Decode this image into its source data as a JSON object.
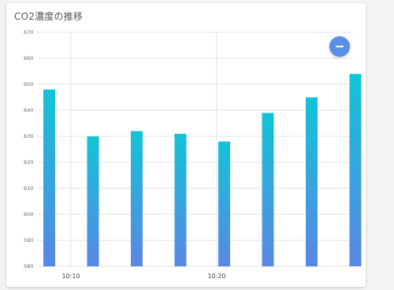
{
  "chart_data": {
    "type": "bar",
    "title": "CO2濃度の推移",
    "ylim": [
      580,
      670
    ],
    "yticks": [
      580,
      590,
      600,
      610,
      620,
      630,
      640,
      650,
      660,
      670
    ],
    "x_tick_labels": [
      "10:10",
      "10:20"
    ],
    "values": [
      648,
      630,
      632,
      631,
      628,
      639,
      645,
      654
    ],
    "grid": true,
    "colors": {
      "bar_top": "#11c4d6",
      "bar_bottom": "#5a87e4"
    }
  }
}
